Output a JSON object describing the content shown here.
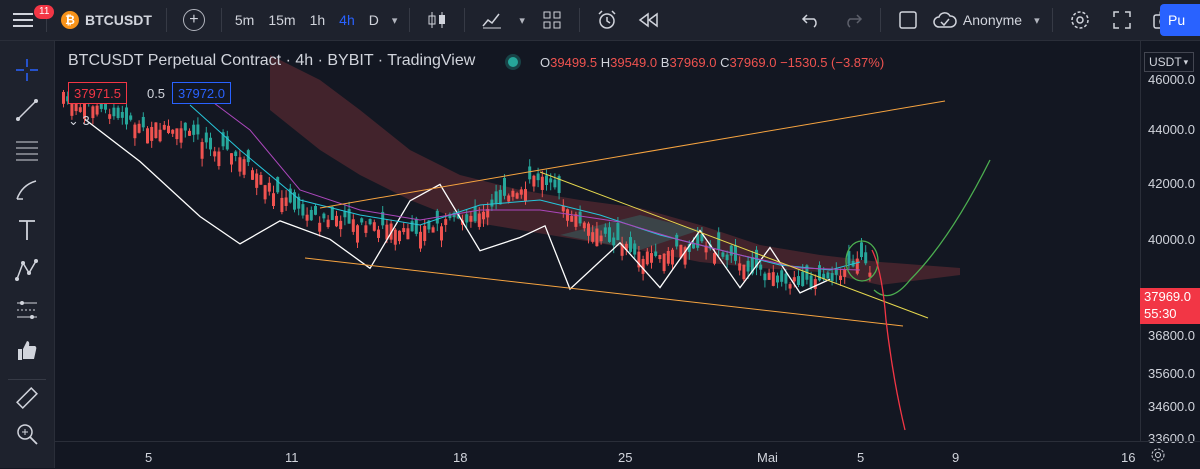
{
  "topbar": {
    "notification_count": "11",
    "symbol": "BTCUSDT",
    "timeframes": [
      "5m",
      "15m",
      "1h",
      "4h",
      "D"
    ],
    "active_timeframe": "4h",
    "account_name": "Anonyme",
    "publish_label": "Pu"
  },
  "legend": {
    "title": "BTCUSDT Perpetual Contract · 4h · BYBIT · TradingView",
    "open_key": "O",
    "open": "39499.5",
    "high_key": "H",
    "high": "39549.0",
    "low_key": "B",
    "low": "37969.0",
    "close_key": "C",
    "close": "37969.0",
    "change": "−1530.5 (−3.87%)",
    "sell_price": "37971.5",
    "spread": "0.5",
    "buy_price": "37972.0",
    "indicator_count": "3"
  },
  "price_axis": {
    "currency": "USDT",
    "labels": [
      "46000.0",
      "44000.0",
      "42000.0",
      "40000.0",
      "36800.0",
      "35600.0",
      "34600.0",
      "33600.0"
    ],
    "current_price": "37969.0",
    "countdown": "55:30"
  },
  "time_axis": {
    "labels": [
      "5",
      "11",
      "18",
      "25",
      "Mai",
      "5",
      "9",
      "16"
    ]
  },
  "colors": {
    "background": "#131722",
    "up": "#26a69a",
    "down": "#ef5350",
    "accent": "#2962ff",
    "trendline": "#f7a440",
    "price_line": "#ffffff",
    "forecast_up": "#4caf50",
    "forecast_down": "#f23645"
  },
  "icons": {
    "left_toolbar": [
      "crosshair-icon",
      "trendline-icon",
      "fib-icon",
      "brush-icon",
      "text-icon",
      "pattern-icon",
      "prediction-icon",
      "thumbs-up-icon",
      "ruler-icon",
      "zoom-icon"
    ]
  }
}
